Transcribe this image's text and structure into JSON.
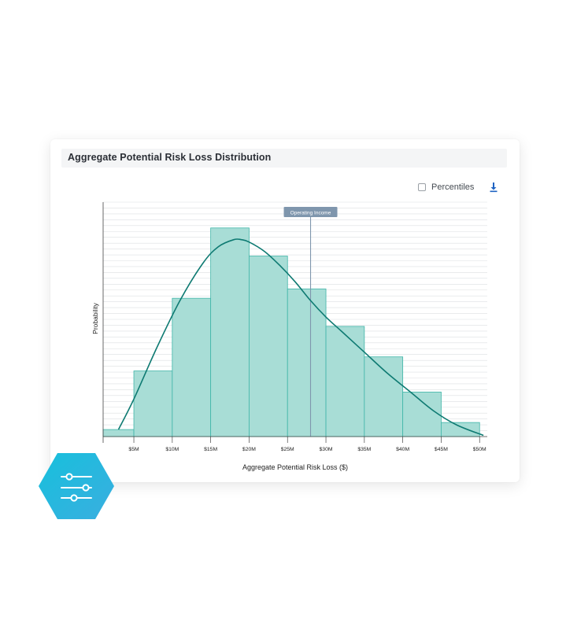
{
  "card": {
    "title": "Aggregate Potential Risk Loss Distribution",
    "percentiles_label": "Percentiles",
    "percentiles_checked": false
  },
  "icons": {
    "download": "download-icon",
    "filters": "sliders-icon"
  },
  "colors": {
    "bar_fill": "#a8ddd6",
    "bar_stroke": "#3fb5a8",
    "curve": "#0e7a72",
    "marker": "#7f96ad",
    "download": "#1f63c2",
    "hex_gradient": [
      "#17c0dc",
      "#3aaee0"
    ]
  },
  "chart_data": {
    "type": "bar",
    "title": "",
    "xlabel": "Aggregate Potential Risk Loss ($)",
    "ylabel": "Probability",
    "x_ticks": [
      "$5M",
      "$10M",
      "$15M",
      "$20M",
      "$25M",
      "$30M",
      "$35M",
      "$40M",
      "$45M",
      "$50M"
    ],
    "xlim": [
      1,
      51
    ],
    "ylim": [
      0,
      1.0
    ],
    "grid": true,
    "bins": [
      {
        "from": 1,
        "to": 5,
        "value": 0.03
      },
      {
        "from": 5,
        "to": 10,
        "value": 0.28
      },
      {
        "from": 10,
        "to": 15,
        "value": 0.59
      },
      {
        "from": 15,
        "to": 20,
        "value": 0.89
      },
      {
        "from": 20,
        "to": 25,
        "value": 0.77
      },
      {
        "from": 25,
        "to": 30,
        "value": 0.63
      },
      {
        "from": 30,
        "to": 35,
        "value": 0.47
      },
      {
        "from": 35,
        "to": 40,
        "value": 0.34
      },
      {
        "from": 40,
        "to": 45,
        "value": 0.19
      },
      {
        "from": 45,
        "to": 50,
        "value": 0.06
      }
    ],
    "curve": {
      "x": [
        3,
        5,
        8,
        11,
        14,
        16,
        18,
        19,
        20,
        22,
        24,
        26,
        28,
        30,
        32,
        35,
        38,
        41,
        44,
        47,
        50.5
      ],
      "y": [
        0.03,
        0.16,
        0.38,
        0.58,
        0.74,
        0.81,
        0.84,
        0.84,
        0.83,
        0.79,
        0.73,
        0.66,
        0.58,
        0.51,
        0.45,
        0.36,
        0.27,
        0.19,
        0.11,
        0.05,
        0.005
      ]
    },
    "markers": [
      {
        "label": "Operating Income",
        "x": 28
      }
    ]
  }
}
